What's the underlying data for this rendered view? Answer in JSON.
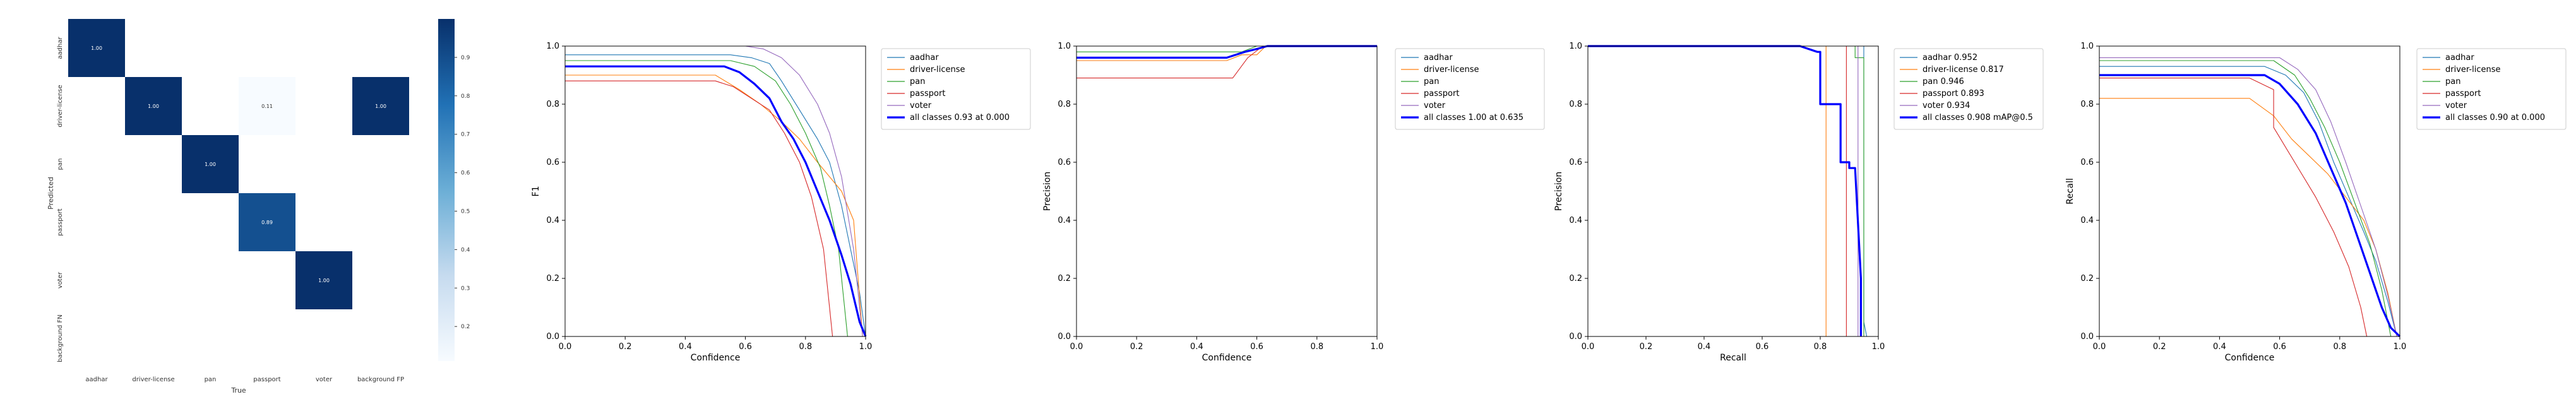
{
  "chart_data": [
    {
      "type": "heatmap",
      "title": "",
      "xlabel": "True",
      "ylabel": "Predicted",
      "x_labels": [
        "aadhar",
        "driver-license",
        "pan",
        "passport",
        "voter",
        "background FP"
      ],
      "y_labels": [
        "aadhar",
        "driver-license",
        "pan",
        "passport",
        "voter",
        "background FN"
      ],
      "cells": [
        {
          "row": 0,
          "col": 0,
          "value": 1.0,
          "label": "1.00"
        },
        {
          "row": 1,
          "col": 1,
          "value": 1.0,
          "label": "1.00"
        },
        {
          "row": 1,
          "col": 3,
          "value": 0.11,
          "label": "0.11"
        },
        {
          "row": 1,
          "col": 5,
          "value": 1.0,
          "label": "1.00"
        },
        {
          "row": 2,
          "col": 2,
          "value": 1.0,
          "label": "1.00"
        },
        {
          "row": 3,
          "col": 3,
          "value": 0.89,
          "label": "0.89"
        },
        {
          "row": 4,
          "col": 4,
          "value": 1.0,
          "label": "1.00"
        }
      ],
      "colorbar_ticks": [
        "0.2",
        "0.3",
        "0.4",
        "0.5",
        "0.6",
        "0.7",
        "0.8",
        "0.9"
      ],
      "colorbar_range": [
        0.11,
        1.0
      ],
      "colormap": [
        "#f7fbff",
        "#c6dbef",
        "#6baed6",
        "#2171b5",
        "#08306b"
      ]
    },
    {
      "type": "line",
      "title": "",
      "xlabel": "Confidence",
      "ylabel": "F1",
      "xlim": [
        0,
        1
      ],
      "ylim": [
        0,
        1
      ],
      "xticks": [
        "0.0",
        "0.2",
        "0.4",
        "0.6",
        "0.8",
        "1.0"
      ],
      "yticks": [
        "0.0",
        "0.2",
        "0.4",
        "0.6",
        "0.8",
        "1.0"
      ],
      "legend_position": "outside-right",
      "series": [
        {
          "name": "aadhar",
          "color": "#1f77b4",
          "x": [
            0,
            0.55,
            0.62,
            0.68,
            0.72,
            0.78,
            0.84,
            0.88,
            0.92,
            0.95,
            0.98,
            1.0
          ],
          "y": [
            0.97,
            0.97,
            0.96,
            0.94,
            0.88,
            0.78,
            0.68,
            0.6,
            0.45,
            0.3,
            0.15,
            0.0
          ]
        },
        {
          "name": "driver-license",
          "color": "#ff7f0e",
          "x": [
            0,
            0.5,
            0.58,
            0.65,
            0.72,
            0.78,
            0.84,
            0.88,
            0.92,
            0.96,
            0.99
          ],
          "y": [
            0.9,
            0.9,
            0.85,
            0.8,
            0.74,
            0.68,
            0.6,
            0.55,
            0.5,
            0.4,
            0.0
          ]
        },
        {
          "name": "pan",
          "color": "#2ca02c",
          "x": [
            0,
            0.55,
            0.63,
            0.7,
            0.75,
            0.8,
            0.85,
            0.88,
            0.91,
            0.94
          ],
          "y": [
            0.95,
            0.95,
            0.93,
            0.88,
            0.8,
            0.7,
            0.58,
            0.45,
            0.3,
            0.0
          ]
        },
        {
          "name": "passport",
          "color": "#d62728",
          "x": [
            0,
            0.5,
            0.56,
            0.62,
            0.68,
            0.73,
            0.78,
            0.82,
            0.86,
            0.89
          ],
          "y": [
            0.88,
            0.88,
            0.86,
            0.82,
            0.78,
            0.7,
            0.6,
            0.48,
            0.3,
            0.0
          ]
        },
        {
          "name": "voter",
          "color": "#9467bd",
          "x": [
            0,
            0.6,
            0.66,
            0.72,
            0.78,
            0.84,
            0.88,
            0.92,
            0.96,
            0.99
          ],
          "y": [
            1.0,
            1.0,
            0.99,
            0.96,
            0.9,
            0.8,
            0.7,
            0.55,
            0.3,
            0.0
          ]
        },
        {
          "name": "all classes 0.93 at 0.000",
          "color": "#0000ff",
          "bold": true,
          "x": [
            0,
            0.53,
            0.58,
            0.63,
            0.68,
            0.72,
            0.76,
            0.8,
            0.84,
            0.88,
            0.92,
            0.95,
            0.98,
            1.0
          ],
          "y": [
            0.93,
            0.93,
            0.91,
            0.87,
            0.82,
            0.74,
            0.68,
            0.6,
            0.5,
            0.4,
            0.28,
            0.18,
            0.05,
            0.0
          ]
        }
      ]
    },
    {
      "type": "line",
      "title": "",
      "xlabel": "Confidence",
      "ylabel": "Precision",
      "xlim": [
        0,
        1
      ],
      "ylim": [
        0,
        1
      ],
      "xticks": [
        "0.0",
        "0.2",
        "0.4",
        "0.6",
        "0.8",
        "1.0"
      ],
      "yticks": [
        "0.0",
        "0.2",
        "0.4",
        "0.6",
        "0.8",
        "1.0"
      ],
      "legend_position": "outside-right",
      "series": [
        {
          "name": "aadhar",
          "color": "#1f77b4",
          "x": [
            0,
            0.6,
            0.62,
            1.0
          ],
          "y": [
            1.0,
            1.0,
            1.0,
            1.0
          ]
        },
        {
          "name": "driver-license",
          "color": "#ff7f0e",
          "x": [
            0,
            0.5,
            0.55,
            0.6,
            0.63,
            1.0
          ],
          "y": [
            0.95,
            0.95,
            0.97,
            0.97,
            1.0,
            1.0
          ]
        },
        {
          "name": "pan",
          "color": "#2ca02c",
          "x": [
            0,
            0.55,
            0.6,
            1.0
          ],
          "y": [
            0.98,
            0.98,
            1.0,
            1.0
          ]
        },
        {
          "name": "passport",
          "color": "#d62728",
          "x": [
            0,
            0.52,
            0.57,
            0.62,
            1.0
          ],
          "y": [
            0.89,
            0.89,
            0.96,
            1.0,
            1.0
          ]
        },
        {
          "name": "voter",
          "color": "#9467bd",
          "x": [
            0,
            1.0
          ],
          "y": [
            1.0,
            1.0
          ]
        },
        {
          "name": "all classes 1.00 at 0.635",
          "color": "#0000ff",
          "bold": true,
          "x": [
            0,
            0.5,
            0.56,
            0.6,
            0.635,
            1.0
          ],
          "y": [
            0.96,
            0.96,
            0.98,
            0.99,
            1.0,
            1.0
          ]
        }
      ]
    },
    {
      "type": "line",
      "title": "",
      "xlabel": "Recall",
      "ylabel": "Precision",
      "xlim": [
        0,
        1
      ],
      "ylim": [
        0,
        1
      ],
      "xticks": [
        "0.0",
        "0.2",
        "0.4",
        "0.6",
        "0.8",
        "1.0"
      ],
      "yticks": [
        "0.0",
        "0.2",
        "0.4",
        "0.6",
        "0.8",
        "1.0"
      ],
      "legend_position": "outside-right",
      "series": [
        {
          "name": "aadhar 0.952",
          "color": "#1f77b4",
          "x": [
            0,
            0.95,
            0.95,
            0.96
          ],
          "y": [
            1.0,
            1.0,
            0.05,
            0.0
          ]
        },
        {
          "name": "driver-license 0.817",
          "color": "#ff7f0e",
          "x": [
            0,
            0.82,
            0.82
          ],
          "y": [
            1.0,
            1.0,
            0.0
          ]
        },
        {
          "name": "pan 0.946",
          "color": "#2ca02c",
          "x": [
            0,
            0.92,
            0.92,
            0.95,
            0.95
          ],
          "y": [
            1.0,
            1.0,
            0.96,
            0.96,
            0.0
          ]
        },
        {
          "name": "passport 0.893",
          "color": "#d62728",
          "x": [
            0,
            0.89,
            0.89
          ],
          "y": [
            1.0,
            1.0,
            0.0
          ]
        },
        {
          "name": "voter 0.934",
          "color": "#9467bd",
          "x": [
            0,
            0.93,
            0.93
          ],
          "y": [
            1.0,
            1.0,
            0.0
          ]
        },
        {
          "name": "all classes 0.908 mAP@0.5",
          "color": "#0000ff",
          "bold": true,
          "x": [
            0,
            0.73,
            0.79,
            0.8,
            0.8,
            0.87,
            0.87,
            0.9,
            0.9,
            0.92,
            0.94,
            0.94
          ],
          "y": [
            1.0,
            1.0,
            0.98,
            0.98,
            0.8,
            0.8,
            0.6,
            0.6,
            0.58,
            0.58,
            0.2,
            0.0
          ]
        }
      ]
    },
    {
      "type": "line",
      "title": "",
      "xlabel": "Confidence",
      "ylabel": "Recall",
      "xlim": [
        0,
        1
      ],
      "ylim": [
        0,
        1
      ],
      "xticks": [
        "0.0",
        "0.2",
        "0.4",
        "0.6",
        "0.8",
        "1.0"
      ],
      "yticks": [
        "0.0",
        "0.2",
        "0.4",
        "0.6",
        "0.8",
        "1.0"
      ],
      "legend_position": "outside-right",
      "series": [
        {
          "name": "aadhar",
          "color": "#1f77b4",
          "x": [
            0,
            0.55,
            0.62,
            0.68,
            0.73,
            0.78,
            0.83,
            0.88,
            0.92,
            0.96,
            0.99
          ],
          "y": [
            0.93,
            0.93,
            0.9,
            0.84,
            0.74,
            0.6,
            0.48,
            0.36,
            0.26,
            0.12,
            0.0
          ]
        },
        {
          "name": "driver-license",
          "color": "#ff7f0e",
          "x": [
            0,
            0.5,
            0.58,
            0.64,
            0.7,
            0.76,
            0.82,
            0.88,
            0.92,
            0.96,
            0.99
          ],
          "y": [
            0.82,
            0.82,
            0.76,
            0.68,
            0.62,
            0.56,
            0.48,
            0.4,
            0.3,
            0.15,
            0.0
          ]
        },
        {
          "name": "pan",
          "color": "#2ca02c",
          "x": [
            0,
            0.58,
            0.65,
            0.7,
            0.75,
            0.8,
            0.85,
            0.9,
            0.94,
            0.97
          ],
          "y": [
            0.95,
            0.95,
            0.9,
            0.82,
            0.72,
            0.6,
            0.46,
            0.32,
            0.16,
            0.0
          ]
        },
        {
          "name": "passport",
          "color": "#d62728",
          "x": [
            0,
            0.5,
            0.58,
            0.58,
            0.65,
            0.72,
            0.78,
            0.83,
            0.87,
            0.89
          ],
          "y": [
            0.89,
            0.89,
            0.85,
            0.72,
            0.6,
            0.48,
            0.36,
            0.24,
            0.1,
            0.0
          ]
        },
        {
          "name": "voter",
          "color": "#9467bd",
          "x": [
            0,
            0.6,
            0.66,
            0.72,
            0.77,
            0.82,
            0.87,
            0.92,
            0.96,
            0.99
          ],
          "y": [
            0.96,
            0.96,
            0.92,
            0.85,
            0.74,
            0.6,
            0.45,
            0.3,
            0.14,
            0.0
          ]
        },
        {
          "name": "all classes 0.90 at 0.000",
          "color": "#0000ff",
          "bold": true,
          "x": [
            0,
            0.55,
            0.6,
            0.66,
            0.72,
            0.77,
            0.82,
            0.86,
            0.9,
            0.94,
            0.97,
            1.0
          ],
          "y": [
            0.9,
            0.9,
            0.87,
            0.8,
            0.7,
            0.58,
            0.46,
            0.34,
            0.22,
            0.1,
            0.03,
            0.0
          ]
        }
      ]
    }
  ]
}
